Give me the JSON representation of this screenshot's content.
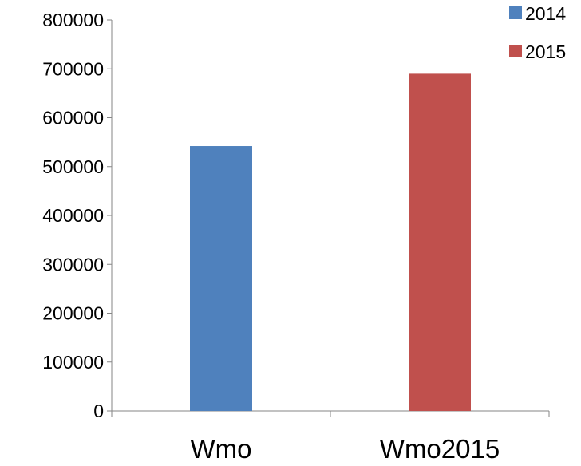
{
  "chart_data": {
    "type": "bar",
    "categories": [
      "Wmo",
      "Wmo2015"
    ],
    "series": [
      {
        "name": "2014",
        "color": "#4F81BD",
        "values": [
          542000,
          null
        ]
      },
      {
        "name": "2015",
        "color": "#C0504D",
        "values": [
          null,
          690000
        ]
      }
    ],
    "ylim": [
      0,
      800000
    ],
    "yticks": [
      "0",
      "100000",
      "200000",
      "300000",
      "400000",
      "500000",
      "600000",
      "700000",
      "800000"
    ],
    "grid": false,
    "legend_position": "top-right"
  }
}
